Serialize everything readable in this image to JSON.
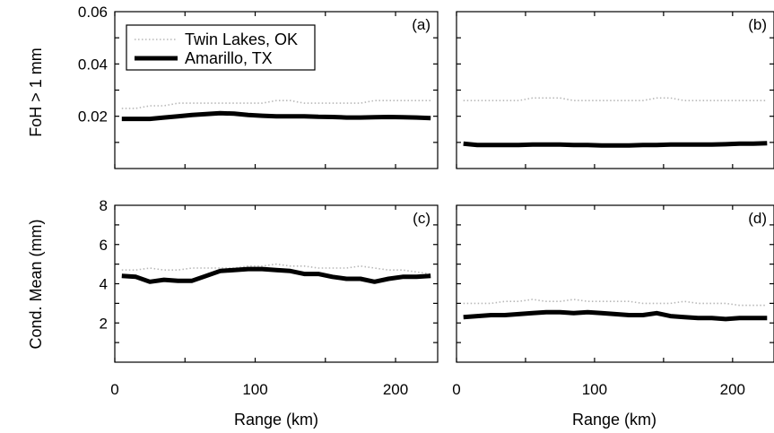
{
  "chart_data": {
    "type": "line",
    "legend": {
      "placement": "top-left",
      "entries": [
        {
          "label": "Twin Lakes, OK",
          "color": "#b8b8b8",
          "style": "dotted"
        },
        {
          "label": "Amarillo, TX",
          "color": "#000000",
          "style": "thick-solid"
        }
      ]
    },
    "xlabel": "Range (km)",
    "xlim": [
      0,
      230
    ],
    "xticks": [
      "0",
      "100",
      "200"
    ],
    "x": [
      5,
      15,
      25,
      35,
      45,
      55,
      65,
      75,
      85,
      95,
      105,
      115,
      125,
      135,
      145,
      155,
      165,
      175,
      185,
      195,
      205,
      215,
      225
    ],
    "rows": [
      {
        "ylabel": "FoH > 1 mm",
        "ylim": [
          0,
          0.06
        ],
        "yticks": [
          "0.02",
          "0.04",
          "0.06"
        ]
      },
      {
        "ylabel": "Cond. Mean (mm)",
        "ylim": [
          0,
          8
        ],
        "yticks": [
          "2",
          "4",
          "6",
          "8"
        ]
      }
    ],
    "panels": [
      {
        "tag": "(a)",
        "row": 0,
        "col": 0,
        "series": [
          {
            "name": "Twin Lakes, OK",
            "values": [
              0.023,
              0.023,
              0.024,
              0.024,
              0.025,
              0.025,
              0.025,
              0.025,
              0.025,
              0.025,
              0.025,
              0.026,
              0.026,
              0.025,
              0.025,
              0.025,
              0.025,
              0.025,
              0.026,
              0.026,
              0.026,
              0.026,
              0.026
            ]
          },
          {
            "name": "Amarillo, TX",
            "values": [
              0.019,
              0.019,
              0.019,
              0.0195,
              0.02,
              0.0205,
              0.0208,
              0.0212,
              0.021,
              0.0205,
              0.0202,
              0.02,
              0.02,
              0.02,
              0.0198,
              0.0197,
              0.0195,
              0.0195,
              0.0196,
              0.0197,
              0.0196,
              0.0195,
              0.0193
            ]
          }
        ]
      },
      {
        "tag": "(b)",
        "row": 0,
        "col": 1,
        "series": [
          {
            "name": "Twin Lakes, OK",
            "values": [
              0.026,
              0.026,
              0.026,
              0.026,
              0.026,
              0.027,
              0.027,
              0.027,
              0.026,
              0.026,
              0.026,
              0.026,
              0.026,
              0.026,
              0.027,
              0.027,
              0.026,
              0.026,
              0.026,
              0.026,
              0.026,
              0.026,
              0.026
            ]
          },
          {
            "name": "Amarillo, TX",
            "values": [
              0.0095,
              0.009,
              0.009,
              0.009,
              0.009,
              0.0092,
              0.0092,
              0.0092,
              0.009,
              0.009,
              0.0088,
              0.0088,
              0.0088,
              0.009,
              0.009,
              0.0092,
              0.0092,
              0.0092,
              0.0092,
              0.0093,
              0.0095,
              0.0095,
              0.0097
            ]
          }
        ]
      },
      {
        "tag": "(c)",
        "row": 1,
        "col": 0,
        "series": [
          {
            "name": "Twin Lakes, OK",
            "values": [
              4.7,
              4.7,
              4.8,
              4.7,
              4.7,
              4.8,
              4.8,
              4.8,
              4.8,
              4.9,
              4.9,
              5.0,
              4.9,
              4.9,
              4.8,
              4.8,
              4.8,
              4.9,
              4.8,
              4.7,
              4.7,
              4.6,
              4.5
            ]
          },
          {
            "name": "Amarillo, TX",
            "values": [
              4.4,
              4.35,
              4.1,
              4.2,
              4.15,
              4.15,
              4.4,
              4.65,
              4.7,
              4.75,
              4.75,
              4.7,
              4.65,
              4.5,
              4.5,
              4.35,
              4.25,
              4.25,
              4.1,
              4.25,
              4.35,
              4.35,
              4.4
            ]
          }
        ]
      },
      {
        "tag": "(d)",
        "row": 1,
        "col": 1,
        "series": [
          {
            "name": "Twin Lakes, OK",
            "values": [
              3.0,
              3.0,
              3.0,
              3.1,
              3.1,
              3.2,
              3.1,
              3.1,
              3.2,
              3.1,
              3.1,
              3.1,
              3.1,
              3.0,
              3.0,
              3.0,
              3.1,
              3.0,
              3.0,
              3.0,
              2.9,
              2.9,
              2.9
            ]
          },
          {
            "name": "Amarillo, TX",
            "values": [
              2.3,
              2.35,
              2.4,
              2.4,
              2.45,
              2.5,
              2.55,
              2.55,
              2.5,
              2.55,
              2.5,
              2.45,
              2.4,
              2.4,
              2.5,
              2.35,
              2.3,
              2.25,
              2.25,
              2.2,
              2.25,
              2.25,
              2.25
            ]
          }
        ]
      }
    ]
  }
}
